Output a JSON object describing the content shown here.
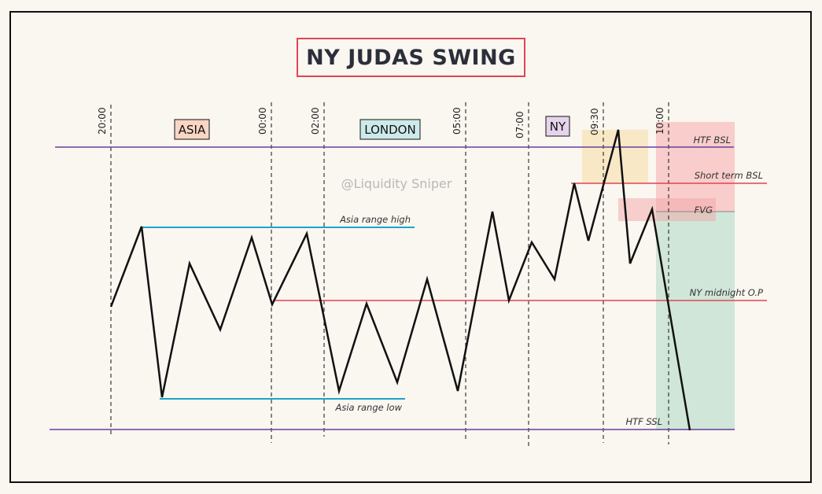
{
  "title": "NY JUDAS SWING",
  "watermark": "@Liquidity Sniper",
  "sessions": {
    "asia": "ASIA",
    "london": "LONDON",
    "ny": "NY"
  },
  "times": {
    "t2000": "20:00",
    "t0000": "00:00",
    "t0200": "02:00",
    "t0500": "05:00",
    "t0700": "07:00",
    "t0930": "09:30",
    "t1000": "10:00"
  },
  "levels": {
    "htf_bsl": "HTF BSL",
    "short_term_bsl": "Short term BSL",
    "fvg": "FVG",
    "ny_midnight_op": "NY midnight O.P",
    "asia_range_high": "Asia range high",
    "asia_range_low": "Asia range low",
    "htf_ssl": "HTF SSL"
  },
  "colors": {
    "asia": "#f9d5c4",
    "london": "#cdeaea",
    "ny": "#e6d4ec",
    "htf_line": "#6b3fa0",
    "red_line": "#e04553",
    "asia_range": "#1ba6c9",
    "price": "#111111"
  }
}
